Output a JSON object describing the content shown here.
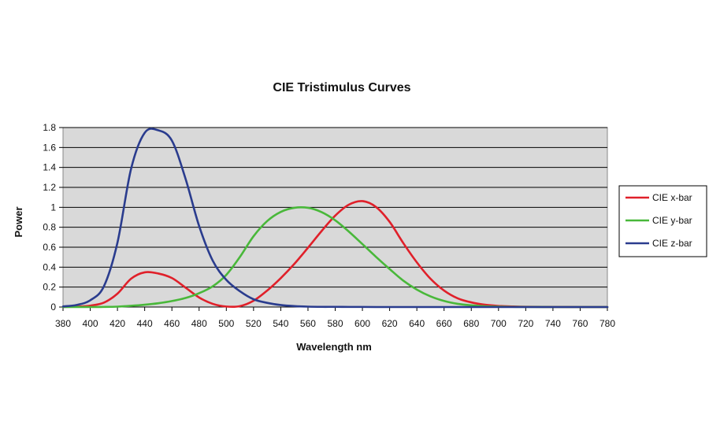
{
  "chart_data": {
    "type": "line",
    "title": "CIE Tristimulus Curves",
    "xlabel": "Wavelength nm",
    "ylabel": "Power",
    "xlim": [
      380,
      780
    ],
    "ylim": [
      0,
      1.8
    ],
    "x_ticks": [
      "380",
      "400",
      "420",
      "440",
      "460",
      "480",
      "500",
      "520",
      "540",
      "560",
      "580",
      "600",
      "620",
      "640",
      "660",
      "680",
      "700",
      "720",
      "740",
      "760",
      "780"
    ],
    "y_ticks": [
      "0",
      "0.2",
      "0.4",
      "0.6",
      "0.8",
      "1",
      "1.2",
      "1.4",
      "1.6",
      "1.8"
    ],
    "grid": "horizontal",
    "legend_position": "right",
    "plot_background": "#d9d9d9",
    "series": [
      {
        "name": "CIE x-bar",
        "color": "#e0202a",
        "x": [
          380,
          390,
          400,
          410,
          420,
          430,
          440,
          450,
          460,
          470,
          480,
          490,
          500,
          510,
          520,
          530,
          540,
          550,
          560,
          570,
          580,
          590,
          600,
          610,
          620,
          630,
          640,
          650,
          660,
          670,
          680,
          690,
          700,
          710,
          720,
          740,
          760,
          780
        ],
        "y": [
          0.001,
          0.004,
          0.014,
          0.044,
          0.134,
          0.284,
          0.348,
          0.336,
          0.291,
          0.195,
          0.096,
          0.032,
          0.005,
          0.009,
          0.063,
          0.165,
          0.29,
          0.433,
          0.595,
          0.762,
          0.916,
          1.026,
          1.062,
          1.003,
          0.854,
          0.642,
          0.448,
          0.284,
          0.165,
          0.087,
          0.047,
          0.023,
          0.011,
          0.006,
          0.003,
          0.001,
          0,
          0
        ]
      },
      {
        "name": "CIE y-bar",
        "color": "#49b83a",
        "x": [
          380,
          390,
          400,
          410,
          420,
          430,
          440,
          450,
          460,
          470,
          480,
          490,
          500,
          510,
          520,
          530,
          540,
          550,
          560,
          570,
          580,
          590,
          600,
          610,
          620,
          630,
          640,
          650,
          660,
          670,
          680,
          690,
          700,
          710,
          720,
          740,
          760,
          780
        ],
        "y": [
          0,
          0,
          0,
          0.001,
          0.004,
          0.012,
          0.023,
          0.038,
          0.06,
          0.091,
          0.139,
          0.208,
          0.323,
          0.503,
          0.71,
          0.862,
          0.954,
          0.995,
          0.995,
          0.952,
          0.87,
          0.757,
          0.631,
          0.503,
          0.381,
          0.265,
          0.175,
          0.107,
          0.061,
          0.032,
          0.017,
          0.008,
          0.004,
          0.002,
          0.001,
          0,
          0,
          0
        ]
      },
      {
        "name": "CIE z-bar",
        "color": "#2a3c8e",
        "x": [
          380,
          390,
          400,
          410,
          420,
          430,
          440,
          450,
          460,
          470,
          480,
          490,
          500,
          510,
          520,
          530,
          540,
          550,
          560,
          570,
          580,
          590,
          600,
          610,
          620,
          630,
          640,
          650,
          660,
          670,
          680,
          690,
          700,
          710,
          720,
          740,
          760,
          780
        ],
        "y": [
          0.006,
          0.021,
          0.068,
          0.207,
          0.646,
          1.386,
          1.747,
          1.772,
          1.669,
          1.288,
          0.813,
          0.465,
          0.272,
          0.158,
          0.078,
          0.042,
          0.02,
          0.009,
          0.004,
          0.002,
          0.002,
          0.001,
          0.001,
          0,
          0,
          0,
          0,
          0,
          0,
          0,
          0,
          0,
          0,
          0,
          0,
          0,
          0,
          0
        ]
      }
    ]
  }
}
